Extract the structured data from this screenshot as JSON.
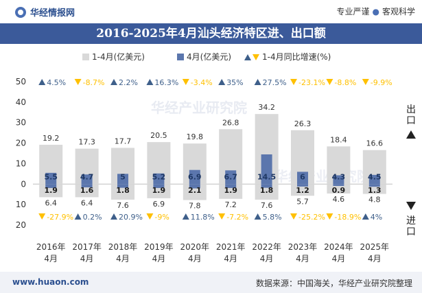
{
  "header": {
    "brand": "华经情报网",
    "tag_left": "专业严谨",
    "tag_right": "客观科学"
  },
  "title": "2016-2025年4月汕头经济特区进、出口额",
  "footer": {
    "site": "www.huaon.com",
    "source": "数据来源：中国海关，华经产业研究院整理"
  },
  "watermark": "华经产业研究院",
  "colors": {
    "cum_bar": "#d9d9d9",
    "month_bar": "#5b76ad",
    "up_arrow": "#3e5f8a",
    "down_arrow": "#ffc000",
    "up_text": "#3e5f8a",
    "down_text": "#ffc000",
    "title_bg": "#3b5a9a"
  },
  "chart_data": {
    "type": "bar",
    "categories": [
      "2016年\n4月",
      "2017年\n4月",
      "2018年\n4月",
      "2019年\n4月",
      "2020年\n4月",
      "2021年\n4月",
      "2022年\n4月",
      "2023年\n4月",
      "2024年\n4月",
      "2025年\n4月"
    ],
    "ylim": [
      -20,
      50
    ],
    "yticks": [
      {
        "v": 50,
        "label": "50"
      },
      {
        "v": 40,
        "label": "40"
      },
      {
        "v": 30,
        "label": "30"
      },
      {
        "v": 20,
        "label": "20"
      },
      {
        "v": 10,
        "label": "10"
      },
      {
        "v": 0,
        "label": "0"
      },
      {
        "v": -10,
        "label": "10"
      },
      {
        "v": -20,
        "label": "20"
      }
    ],
    "right_axis_labels": {
      "export": "出口",
      "import": "进口"
    },
    "legend": [
      {
        "label": "1-4月(亿美元)",
        "kind": "cum"
      },
      {
        "label": "4月(亿美元)",
        "kind": "month"
      },
      {
        "label": "1-4月同比增速(%)",
        "kind": "growth"
      }
    ],
    "export": {
      "cumulative": [
        19.2,
        17.3,
        17.7,
        20.5,
        19.8,
        26.8,
        34.2,
        26.3,
        18.4,
        16.6
      ],
      "april": [
        5.5,
        4.7,
        5,
        5.2,
        6.9,
        6.7,
        14.5,
        6,
        4.3,
        4.5
      ],
      "growth": [
        {
          "label": "4.5%",
          "dir": "up"
        },
        {
          "label": "-8.7%",
          "dir": "down"
        },
        {
          "label": "2.2%",
          "dir": "up"
        },
        {
          "label": "16.3%",
          "dir": "up"
        },
        {
          "label": "-3.4%",
          "dir": "down"
        },
        {
          "label": "35%",
          "dir": "up"
        },
        {
          "label": "27.5%",
          "dir": "up"
        },
        {
          "label": "-23.1%",
          "dir": "down"
        },
        {
          "label": "-8.8%",
          "dir": "down"
        },
        {
          "label": "-9.9%",
          "dir": "down"
        }
      ]
    },
    "import": {
      "cumulative": [
        6.4,
        6.4,
        7.6,
        6.9,
        7.8,
        7.2,
        7.6,
        5.7,
        4.6,
        4.8
      ],
      "april": [
        1.9,
        1.6,
        1.8,
        1.9,
        2.1,
        1.9,
        1.8,
        1.2,
        0.9,
        1.3
      ],
      "growth": [
        {
          "label": "-27.9%",
          "dir": "down"
        },
        {
          "label": "0.2%",
          "dir": "up"
        },
        {
          "label": "20.9%",
          "dir": "up"
        },
        {
          "label": "-9%",
          "dir": "down"
        },
        {
          "label": "11.8%",
          "dir": "up"
        },
        {
          "label": "-7.2%",
          "dir": "down"
        },
        {
          "label": "5.8%",
          "dir": "up"
        },
        {
          "label": "-25.2%",
          "dir": "down"
        },
        {
          "label": "-18.9%",
          "dir": "down"
        },
        {
          "label": "4%",
          "dir": "up"
        }
      ]
    }
  }
}
